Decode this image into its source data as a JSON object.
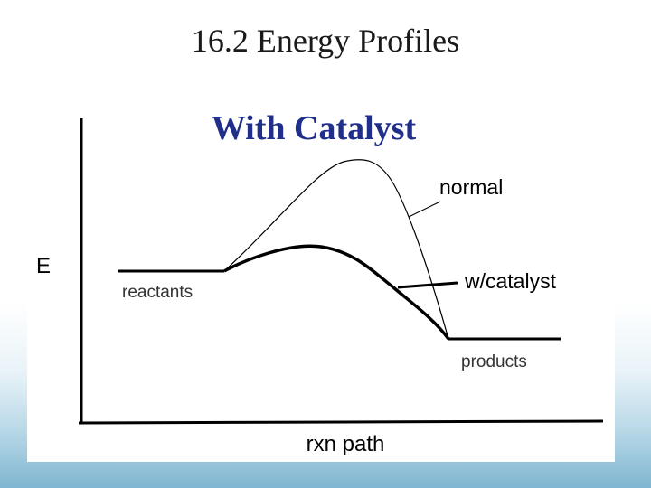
{
  "slide": {
    "title": "16.2 Energy Profiles"
  },
  "diagram": {
    "heading": "With Catalyst",
    "y_axis_label": "E",
    "x_axis_label": "rxn path",
    "state_labels": {
      "reactants": "reactants",
      "products": "products"
    },
    "curve_labels": {
      "normal": "normal",
      "catalyst": "w/catalyst"
    },
    "heading_color": "#1f2f8a"
  }
}
